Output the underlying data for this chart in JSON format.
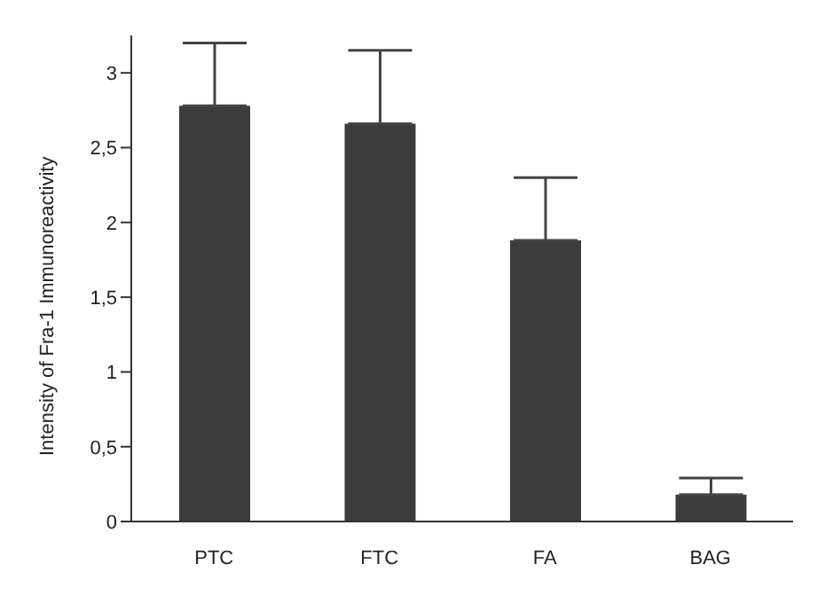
{
  "chart_data": {
    "type": "bar",
    "ylabel": "Intensity of Fra-1 Immunoreactivity",
    "categories": [
      "PTC",
      "FTC",
      "FA",
      "BAG"
    ],
    "values": [
      2.78,
      2.66,
      1.88,
      0.18
    ],
    "errors": [
      [
        2.78,
        3.2
      ],
      [
        2.66,
        3.15
      ],
      [
        1.88,
        2.3
      ],
      [
        0.18,
        0.29
      ]
    ],
    "color": "#3c3c3c",
    "ylim": [
      0,
      3.25
    ],
    "yticks": [
      0,
      {
        "value": 0.5,
        "label": "0,5"
      },
      1,
      {
        "value": 1.5,
        "label": "1,5"
      },
      2,
      {
        "value": 2.5,
        "label": "2,5"
      },
      3
    ],
    "grid": false,
    "legend": false
  }
}
